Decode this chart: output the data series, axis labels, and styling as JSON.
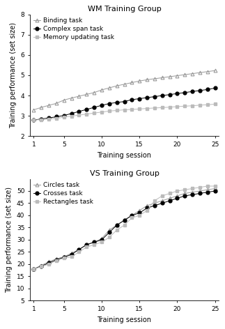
{
  "wm_title": "WM Training Group",
  "vs_title": "VS Training Group",
  "xlabel": "Training session",
  "ylabel": "Training performance (set size)",
  "sessions": [
    1,
    2,
    3,
    4,
    5,
    6,
    7,
    8,
    9,
    10,
    11,
    12,
    13,
    14,
    15,
    16,
    17,
    18,
    19,
    20,
    21,
    22,
    23,
    24,
    25
  ],
  "wm_binding": [
    3.3,
    3.42,
    3.52,
    3.62,
    3.78,
    3.88,
    3.97,
    4.06,
    4.15,
    4.28,
    4.38,
    4.48,
    4.56,
    4.64,
    4.72,
    4.78,
    4.83,
    4.88,
    4.93,
    4.98,
    5.03,
    5.08,
    5.13,
    5.18,
    5.23
  ],
  "wm_complex": [
    2.8,
    2.85,
    2.9,
    2.96,
    3.02,
    3.12,
    3.22,
    3.32,
    3.42,
    3.52,
    3.61,
    3.66,
    3.71,
    3.8,
    3.85,
    3.9,
    3.95,
    4.0,
    4.05,
    4.1,
    4.15,
    4.2,
    4.25,
    4.3,
    4.37
  ],
  "wm_memory": [
    2.8,
    2.82,
    2.85,
    2.88,
    2.94,
    2.99,
    3.04,
    3.09,
    3.14,
    3.19,
    3.24,
    3.27,
    3.3,
    3.32,
    3.34,
    3.37,
    3.39,
    3.41,
    3.43,
    3.46,
    3.48,
    3.5,
    3.53,
    3.55,
    3.58
  ],
  "vs_circles": [
    18.0,
    19.5,
    21.0,
    22.2,
    23.0,
    24.5,
    26.0,
    28.0,
    29.0,
    30.5,
    34.0,
    36.0,
    38.0,
    40.0,
    42.0,
    44.0,
    45.0,
    46.0,
    47.0,
    48.0,
    49.0,
    49.5,
    50.0,
    50.5,
    51.0
  ],
  "vs_crosses": [
    18.0,
    19.2,
    20.5,
    21.8,
    22.8,
    24.0,
    26.0,
    28.0,
    29.0,
    30.0,
    33.0,
    36.0,
    38.0,
    40.0,
    41.0,
    43.0,
    44.0,
    45.0,
    46.0,
    47.0,
    48.0,
    48.5,
    49.0,
    49.5,
    50.0
  ],
  "vs_rectangles": [
    18.0,
    19.0,
    20.0,
    21.5,
    22.5,
    23.0,
    25.0,
    27.0,
    28.0,
    29.0,
    31.0,
    34.0,
    36.0,
    39.0,
    40.0,
    42.0,
    46.0,
    48.0,
    49.0,
    50.0,
    50.5,
    51.0,
    51.5,
    52.0,
    52.0
  ],
  "wm_ylim": [
    2,
    8
  ],
  "wm_yticks": [
    2,
    3,
    4,
    5,
    6,
    7,
    8
  ],
  "vs_ylim": [
    5,
    55
  ],
  "vs_yticks": [
    5,
    10,
    15,
    20,
    25,
    30,
    35,
    40,
    45,
    50
  ],
  "xticks": [
    1,
    5,
    10,
    15,
    20,
    25
  ],
  "color_black": "#000000",
  "color_gray": "#bbbbbb",
  "line_color_binding": "#999999",
  "line_color_complex": "#000000",
  "line_color_memory": "#bbbbbb",
  "line_color_circles": "#999999",
  "line_color_crosses": "#000000",
  "line_color_rectangles": "#bbbbbb",
  "legend_wm": [
    "Binding task",
    "Complex span task",
    "Memory updating task"
  ],
  "legend_vs": [
    "Circles task",
    "Crosses task",
    "Rectangles task"
  ],
  "fontsize_title": 8,
  "fontsize_label": 7,
  "fontsize_tick": 6.5,
  "fontsize_legend": 6.5,
  "markersize": 3.5
}
